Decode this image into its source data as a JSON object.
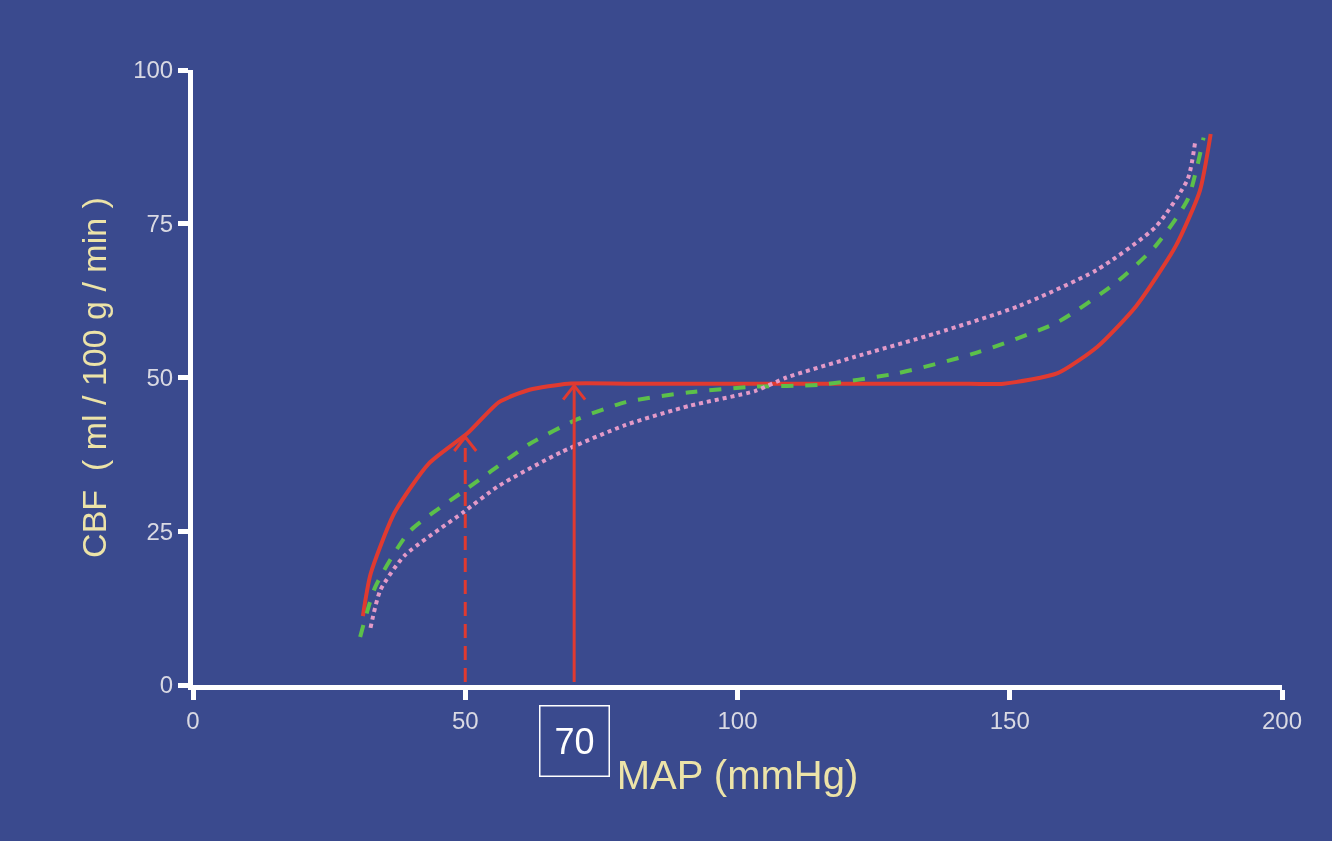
{
  "chart_data": {
    "type": "line",
    "xlabel": "MAP (mmHg)",
    "ylabel": "CBF  ( ml / 100 g / min )",
    "xlim": [
      0,
      200
    ],
    "xticks": [
      0,
      50,
      100,
      150,
      200
    ],
    "ylim": [
      0,
      100
    ],
    "yticks": [
      0,
      25,
      50,
      75,
      100
    ],
    "grid": false,
    "marker": "none",
    "series": [
      {
        "color": "#e03a30",
        "line_style": "solid",
        "x": [
          31.2,
          32.6,
          37,
          43.3,
          50.5,
          56.2,
          61.8,
          68.9,
          80,
          100,
          120,
          140,
          148.9,
          158.8,
          166.1,
          173.2,
          180.5,
          184.9,
          186.9
        ],
        "values": [
          11.2,
          18,
          28,
          36,
          41,
          46,
          48,
          49,
          49,
          49,
          49,
          49,
          49,
          50.7,
          55,
          61.6,
          71.4,
          80.3,
          89.6
        ]
      },
      {
        "color": "#5cc04a",
        "line_style": "dashed",
        "x": [
          30.7,
          33.5,
          39.8,
          49.5,
          54.8,
          61.8,
          70.8,
          79.5,
          91.2,
          103.2,
          115,
          129.4,
          143.8,
          158.8,
          169.6,
          176.8,
          182.7,
          185.6
        ],
        "values": [
          7.8,
          16,
          25,
          31.4,
          34.8,
          39.2,
          43.3,
          46,
          47.6,
          48.5,
          48.8,
          50.7,
          54,
          59,
          65.5,
          71.4,
          79,
          89
        ]
      },
      {
        "color": "#e39ac8",
        "line_style": "dotted",
        "x": [
          32.6,
          34.4,
          38.8,
          49.5,
          56.2,
          67.7,
          79.5,
          91.2,
          103.2,
          109,
          121.3,
          136.5,
          151.6,
          166,
          176.8,
          182.7,
          184.1
        ],
        "values": [
          9.3,
          15.4,
          21,
          28,
          32.4,
          37.9,
          42.3,
          45.4,
          47.8,
          50,
          53.3,
          57.2,
          61.6,
          67.5,
          74.5,
          82.3,
          88.6
        ]
      }
    ],
    "ref_lines": [
      {
        "axis": "x",
        "value": 50,
        "color": "#e03a30",
        "line_style": "dashed"
      },
      {
        "axis": "x",
        "value": 70,
        "label": "70",
        "color": "#e03a30",
        "line_style": "solid"
      }
    ]
  }
}
